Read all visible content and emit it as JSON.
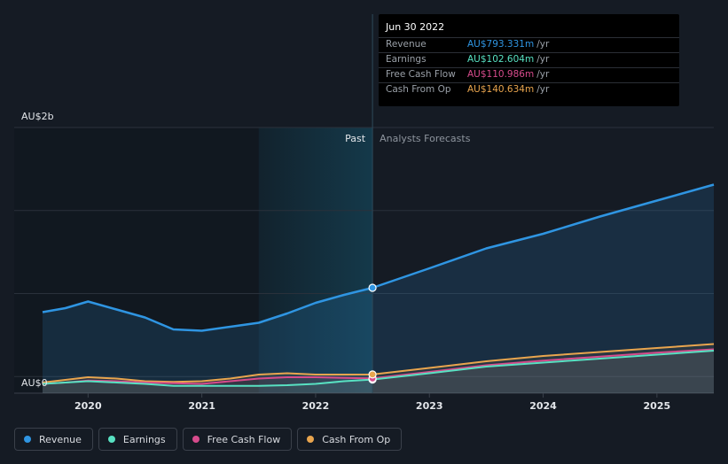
{
  "chart_data": {
    "type": "area",
    "y_axis": {
      "top_label": "AU$2b",
      "bottom_label": "AU$0",
      "ylim": [
        0,
        2000
      ]
    },
    "x_axis": {
      "ticks": [
        "2020",
        "2021",
        "2022",
        "2023",
        "2024",
        "2025"
      ],
      "xlim": [
        2019.6,
        2025.5
      ]
    },
    "past_label": "Past",
    "forecast_label": "Analysts Forecasts",
    "series": [
      {
        "name": "Revenue",
        "color": "#2f95e2",
        "points": [
          [
            2019.6,
            610
          ],
          [
            2019.8,
            640
          ],
          [
            2020.0,
            690
          ],
          [
            2020.25,
            630
          ],
          [
            2020.5,
            570
          ],
          [
            2020.75,
            480
          ],
          [
            2021.0,
            470
          ],
          [
            2021.25,
            500
          ],
          [
            2021.5,
            530
          ],
          [
            2021.75,
            600
          ],
          [
            2022.0,
            680
          ],
          [
            2022.25,
            740
          ],
          [
            2022.5,
            793.331
          ],
          [
            2023.0,
            940
          ],
          [
            2023.5,
            1090
          ],
          [
            2024.0,
            1200
          ],
          [
            2024.5,
            1330
          ],
          [
            2025.0,
            1450
          ],
          [
            2025.5,
            1570
          ]
        ]
      },
      {
        "name": "Earnings",
        "color": "#58e1c2",
        "points": [
          [
            2019.6,
            70
          ],
          [
            2019.8,
            80
          ],
          [
            2020.0,
            90
          ],
          [
            2020.25,
            80
          ],
          [
            2020.5,
            70
          ],
          [
            2020.75,
            55
          ],
          [
            2021.0,
            55
          ],
          [
            2021.25,
            55
          ],
          [
            2021.5,
            55
          ],
          [
            2021.75,
            60
          ],
          [
            2022.0,
            70
          ],
          [
            2022.25,
            90
          ],
          [
            2022.5,
            102.604
          ],
          [
            2023.0,
            150
          ],
          [
            2023.5,
            200
          ],
          [
            2024.0,
            230
          ],
          [
            2024.5,
            260
          ],
          [
            2025.0,
            290
          ],
          [
            2025.5,
            320
          ]
        ]
      },
      {
        "name": "Free Cash Flow",
        "color": "#d64b8c",
        "points": [
          [
            2019.6,
            70
          ],
          [
            2019.8,
            80
          ],
          [
            2020.0,
            95
          ],
          [
            2020.25,
            90
          ],
          [
            2020.5,
            80
          ],
          [
            2020.75,
            75
          ],
          [
            2021.0,
            70
          ],
          [
            2021.25,
            90
          ],
          [
            2021.5,
            110
          ],
          [
            2021.75,
            120
          ],
          [
            2022.0,
            120
          ],
          [
            2022.25,
            115
          ],
          [
            2022.5,
            110.986
          ],
          [
            2023.0,
            160
          ],
          [
            2023.5,
            210
          ],
          [
            2024.0,
            245
          ],
          [
            2024.5,
            275
          ],
          [
            2025.0,
            305
          ],
          [
            2025.5,
            330
          ]
        ]
      },
      {
        "name": "Cash From Op",
        "color": "#e9a54e",
        "points": [
          [
            2019.6,
            80
          ],
          [
            2019.8,
            100
          ],
          [
            2020.0,
            120
          ],
          [
            2020.25,
            110
          ],
          [
            2020.5,
            90
          ],
          [
            2020.75,
            85
          ],
          [
            2021.0,
            90
          ],
          [
            2021.25,
            110
          ],
          [
            2021.5,
            140
          ],
          [
            2021.75,
            150
          ],
          [
            2022.0,
            140
          ],
          [
            2022.25,
            140
          ],
          [
            2022.5,
            140.634
          ],
          [
            2023.0,
            190
          ],
          [
            2023.5,
            240
          ],
          [
            2024.0,
            280
          ],
          [
            2024.5,
            310
          ],
          [
            2025.0,
            340
          ],
          [
            2025.5,
            370
          ]
        ]
      }
    ],
    "highlight_x": 2022.5,
    "tooltip": {
      "date": "Jun 30 2022",
      "rows": [
        {
          "label": "Revenue",
          "value": "AU$793.331m",
          "unit": "/yr",
          "color": "#2f95e2"
        },
        {
          "label": "Earnings",
          "value": "AU$102.604m",
          "unit": "/yr",
          "color": "#58e1c2"
        },
        {
          "label": "Free Cash Flow",
          "value": "AU$110.986m",
          "unit": "/yr",
          "color": "#d64b8c"
        },
        {
          "label": "Cash From Op",
          "value": "AU$140.634m",
          "unit": "/yr",
          "color": "#e9a54e"
        }
      ]
    }
  },
  "legend": [
    {
      "label": "Revenue",
      "color": "#2f95e2"
    },
    {
      "label": "Earnings",
      "color": "#58e1c2"
    },
    {
      "label": "Free Cash Flow",
      "color": "#d64b8c"
    },
    {
      "label": "Cash From Op",
      "color": "#e9a54e"
    }
  ]
}
